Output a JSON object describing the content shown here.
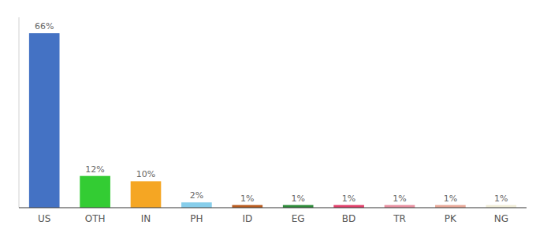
{
  "chart_data": {
    "type": "bar",
    "categories": [
      "US",
      "OTH",
      "IN",
      "PH",
      "ID",
      "EG",
      "BD",
      "TR",
      "PK",
      "NG"
    ],
    "values": [
      66,
      12,
      10,
      2,
      1,
      1,
      1,
      1,
      1,
      1
    ],
    "value_labels": [
      "66%",
      "12%",
      "10%",
      "2%",
      "1%",
      "1%",
      "1%",
      "1%",
      "1%",
      "1%"
    ],
    "colors": [
      "#4472c4",
      "#33cc33",
      "#f5a623",
      "#87ceeb",
      "#b85c20",
      "#2e8b3a",
      "#e0406a",
      "#e890a0",
      "#e8a898",
      "#f0edd8"
    ],
    "ylim": [
      0,
      72
    ],
    "data_labels": true,
    "tick_labels": "x"
  }
}
